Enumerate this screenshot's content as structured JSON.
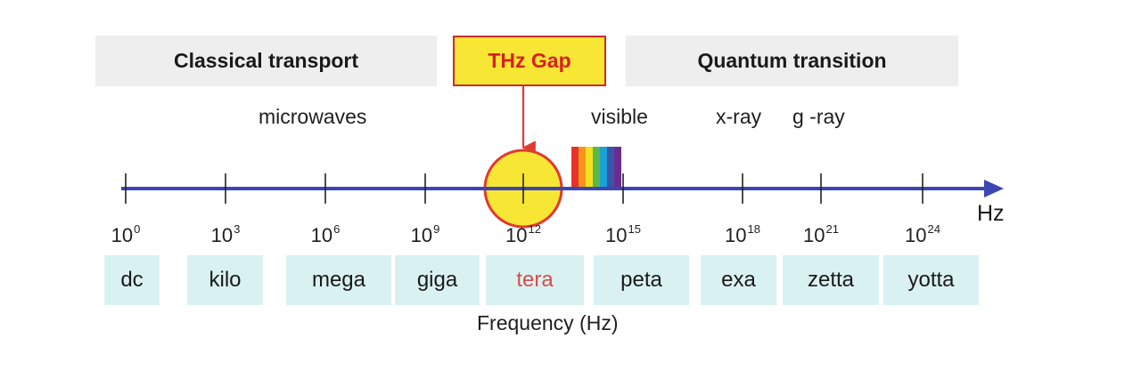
{
  "regions": {
    "classical": "Classical transport",
    "gap": "THz Gap",
    "quantum": "Quantum transition"
  },
  "bands": {
    "microwaves": "microwaves",
    "visible": "visible",
    "xray": "x-ray",
    "gray": "g -ray"
  },
  "ticks": [
    {
      "base": "10",
      "exp": "0"
    },
    {
      "base": "10",
      "exp": "3"
    },
    {
      "base": "10",
      "exp": "6"
    },
    {
      "base": "10",
      "exp": "9"
    },
    {
      "base": "10",
      "exp": "12"
    },
    {
      "base": "10",
      "exp": "15"
    },
    {
      "base": "10",
      "exp": "18"
    },
    {
      "base": "10",
      "exp": "21"
    },
    {
      "base": "10",
      "exp": "24"
    }
  ],
  "prefixes": [
    "dc",
    "kilo",
    "mega",
    "giga",
    "tera",
    "peta",
    "exa",
    "zetta",
    "yotta"
  ],
  "axis": {
    "unit": "Hz",
    "title": "Frequency (Hz)"
  },
  "colors": {
    "axis": "#3c46b4",
    "gap_fill": "#f7e634",
    "gap_stroke": "#e03a2e",
    "highlight_text": "#d94c4c",
    "spectrum": [
      "#e8322a",
      "#f7941d",
      "#f4e11e",
      "#5cb848",
      "#1ca0d8",
      "#3a55a8",
      "#6a2c91"
    ]
  }
}
